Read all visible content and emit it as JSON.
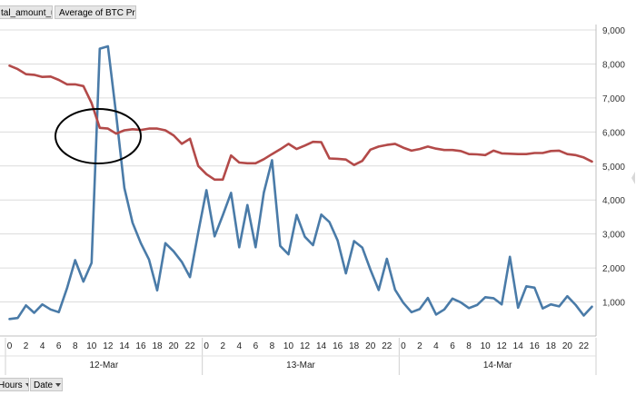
{
  "field_buttons": {
    "series1": "tal_amount_usd",
    "series2": "Average of BTC Price"
  },
  "axis_field_buttons": {
    "hours": "Hours",
    "date": "Date"
  },
  "colors": {
    "series1": "#4a7ba8",
    "series2": "#b34a49",
    "grid": "#dcdcdc",
    "annotation": "#000000"
  },
  "chart_data": {
    "type": "line",
    "secondary_axis": "right",
    "yticks": [
      0,
      1000,
      2000,
      3000,
      4000,
      5000,
      6000,
      7000,
      8000,
      9000
    ],
    "ytick_labels": [
      "",
      "1,000",
      "2,000",
      "3,000",
      "4,000",
      "5,000",
      "6,000",
      "7,000",
      "8,000",
      "9,000"
    ],
    "ylim": [
      0,
      9000
    ],
    "grid": "horizontal",
    "hour_labels": [
      "0",
      "2",
      "4",
      "6",
      "8",
      "10",
      "12",
      "14",
      "16",
      "18",
      "20",
      "22",
      "0",
      "2",
      "4",
      "6",
      "8",
      "10",
      "12",
      "14",
      "16",
      "18",
      "20",
      "22",
      "0",
      "2",
      "4",
      "6",
      "8",
      "10",
      "12",
      "14",
      "16",
      "18",
      "20",
      "22"
    ],
    "date_groups": [
      {
        "label": "12-Mar",
        "hours": 24
      },
      {
        "label": "13-Mar",
        "hours": 24
      },
      {
        "label": "14-Mar",
        "hours": 24
      }
    ],
    "series": [
      {
        "values": [
          500,
          530,
          900,
          680,
          930,
          780,
          700,
          1400,
          2230,
          1600,
          2150,
          8450,
          8520,
          6500,
          4350,
          3330,
          2730,
          2250,
          1340,
          2730,
          2490,
          2180,
          1730,
          3050,
          4290,
          2930,
          3550,
          4210,
          2610,
          3850,
          2610,
          4220,
          5170,
          2650,
          2400,
          3560,
          2920,
          2670,
          3570,
          3350,
          2810,
          1840,
          2790,
          2600,
          1950,
          1350,
          2270,
          1360,
          980,
          700,
          790,
          1120,
          630,
          780,
          1100,
          990,
          820,
          910,
          1140,
          1110,
          930,
          2330,
          830,
          1460,
          1420,
          810,
          930,
          870,
          1170,
          920,
          600,
          860
        ]
      },
      {
        "values": [
          7950,
          7850,
          7700,
          7680,
          7620,
          7630,
          7530,
          7400,
          7400,
          7350,
          6850,
          6120,
          6100,
          5950,
          6050,
          6080,
          6060,
          6100,
          6100,
          6050,
          5900,
          5650,
          5800,
          5000,
          4760,
          4600,
          4600,
          5310,
          5100,
          5080,
          5080,
          5200,
          5350,
          5490,
          5650,
          5500,
          5600,
          5710,
          5700,
          5220,
          5210,
          5190,
          5030,
          5150,
          5480,
          5570,
          5620,
          5650,
          5540,
          5450,
          5500,
          5570,
          5510,
          5470,
          5470,
          5440,
          5350,
          5340,
          5320,
          5450,
          5370,
          5360,
          5350,
          5350,
          5380,
          5380,
          5440,
          5450,
          5350,
          5320,
          5250,
          5130
        ]
      }
    ],
    "annotation": "ellipse"
  }
}
